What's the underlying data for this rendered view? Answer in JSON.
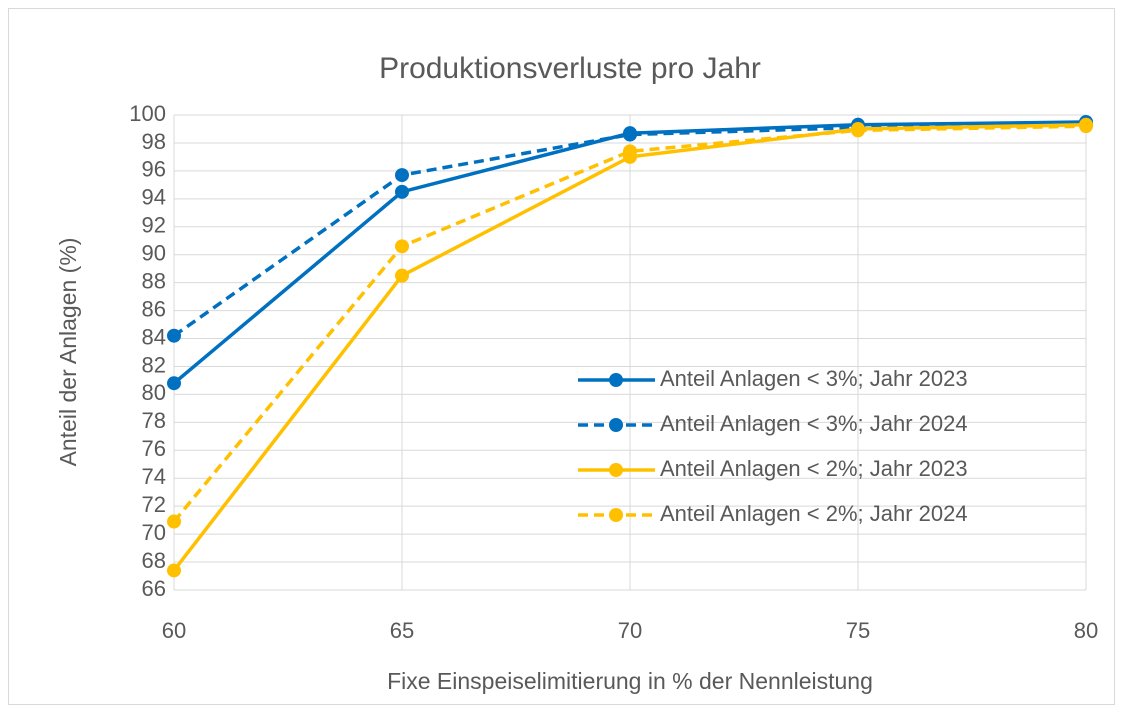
{
  "chart_data": {
    "type": "line",
    "title": "Produktionsverluste pro Jahr",
    "x_label": "Fixe Einspeiselimitierung in % der Nennleistung",
    "y_label": "Anteil der Anlagen (%)",
    "x": [
      60,
      65,
      70,
      75,
      80
    ],
    "xlim": [
      60,
      80
    ],
    "xticks": [
      60,
      65,
      70,
      75,
      80
    ],
    "ylim": [
      66,
      100
    ],
    "yticks": [
      66,
      68,
      70,
      72,
      74,
      76,
      78,
      80,
      82,
      84,
      86,
      88,
      90,
      92,
      94,
      96,
      98,
      100
    ],
    "grid": true,
    "legend": "right",
    "series": [
      {
        "name": "Anteil Anlagen < 3%; Jahr 2023",
        "color": "#0070c0",
        "line_style": "solid",
        "values": [
          80.8,
          94.5,
          98.7,
          99.3,
          99.5
        ]
      },
      {
        "name": "Anteil Anlagen < 3%; Jahr 2024",
        "color": "#0070c0",
        "line_style": "dashed",
        "values": [
          84.2,
          95.7,
          98.6,
          99.1,
          99.4
        ]
      },
      {
        "name": "Anteil Anlagen < 2%; Jahr 2023",
        "color": "#ffc000",
        "line_style": "solid",
        "values": [
          67.4,
          88.5,
          97.0,
          99.0,
          99.3
        ]
      },
      {
        "name": "Anteil Anlagen < 2%; Jahr 2024",
        "color": "#ffc000",
        "line_style": "dashed",
        "values": [
          70.9,
          90.6,
          97.4,
          98.9,
          99.2
        ]
      }
    ]
  }
}
